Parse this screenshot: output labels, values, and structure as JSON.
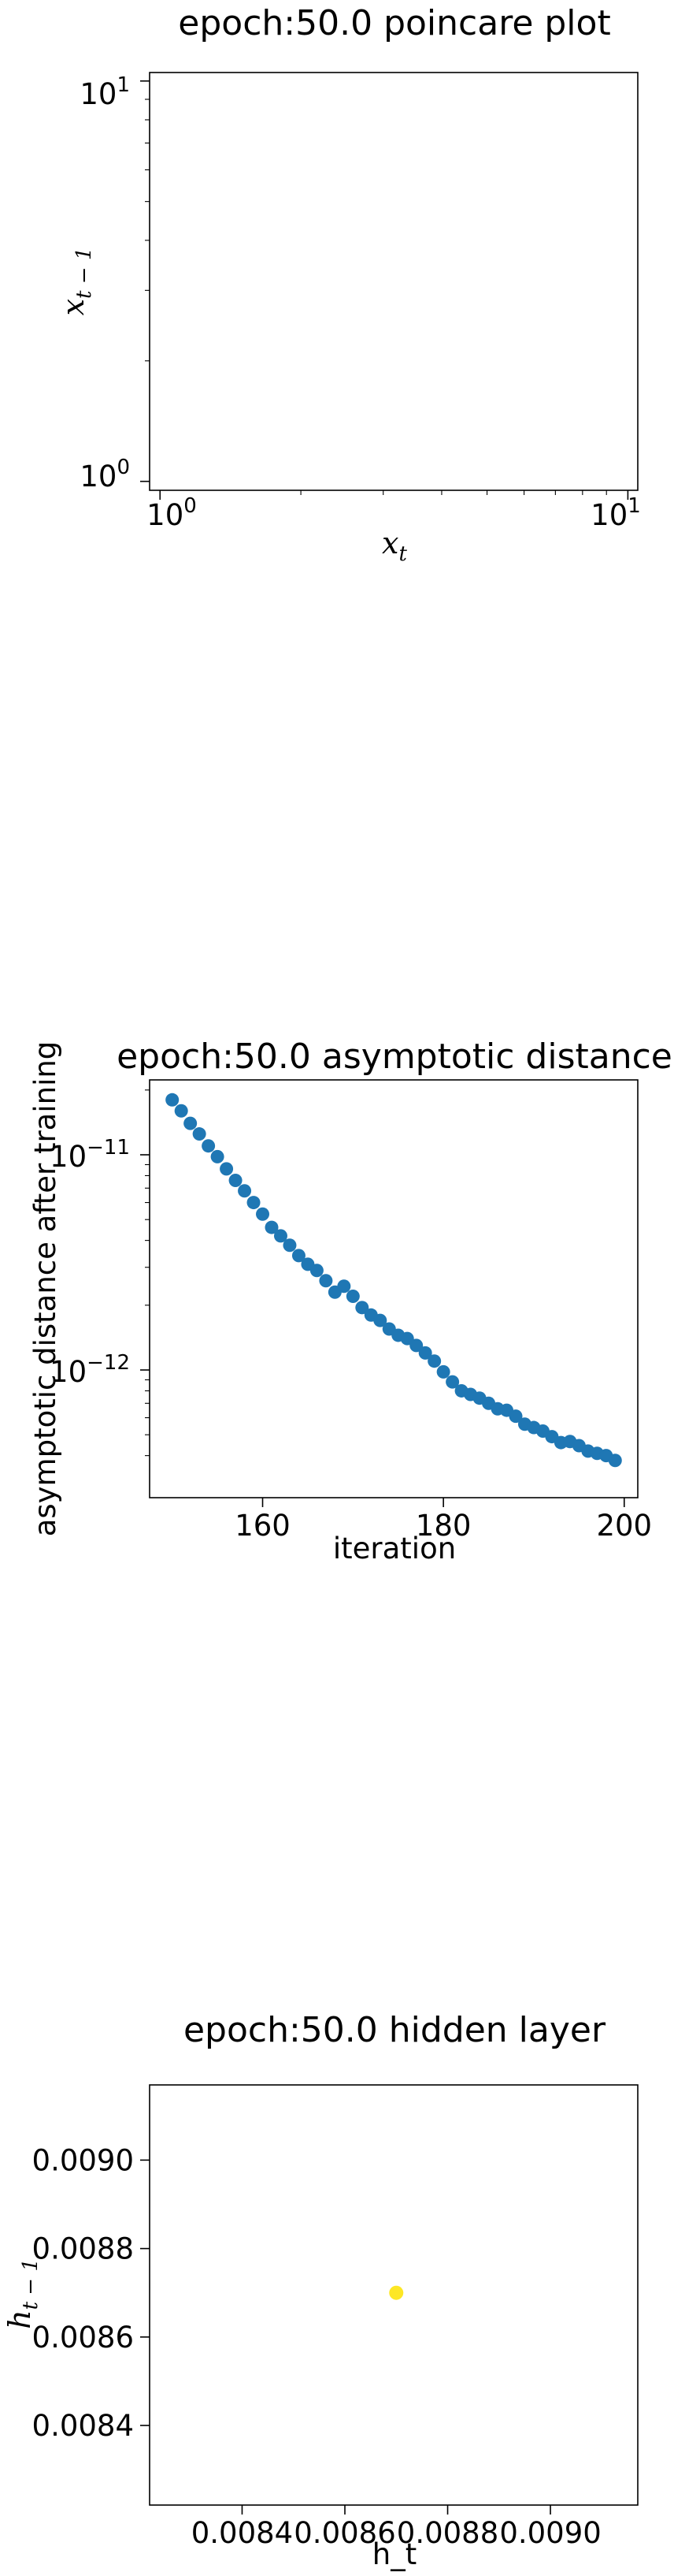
{
  "chart_data": [
    {
      "type": "scatter",
      "title": "epoch:50.0 poincare plot",
      "xlabel": "x_t",
      "ylabel": "x_{t-1}",
      "xscale": "log",
      "yscale": "log",
      "xlim": [
        0.95,
        10.5
      ],
      "ylim": [
        0.95,
        10.5
      ],
      "x_ticks": [
        {
          "base": "10",
          "exp": "0"
        },
        {
          "base": "10",
          "exp": "1"
        }
      ],
      "y_ticks": [
        {
          "base": "10",
          "exp": "0"
        },
        {
          "base": "10",
          "exp": "1"
        }
      ],
      "series": [
        {
          "x": [],
          "y": []
        }
      ]
    },
    {
      "type": "scatter",
      "title": "epoch:50.0 asymptotic distance",
      "xlabel": "iteration",
      "ylabel": "asymptotic distance after training",
      "yscale": "log",
      "xlim": [
        147.5,
        201.5
      ],
      "x_ticks": [
        "160",
        "180",
        "200"
      ],
      "y_ticks": [
        {
          "base": "10",
          "exp": "−11"
        },
        {
          "base": "10",
          "exp": "−12"
        }
      ],
      "color": "#1f77b4",
      "series": [
        {
          "x": [
            150,
            151,
            152,
            153,
            154,
            155,
            156,
            157,
            158,
            159,
            160,
            161,
            162,
            163,
            164,
            165,
            166,
            167,
            168,
            169,
            170,
            171,
            172,
            173,
            174,
            175,
            176,
            177,
            178,
            179,
            180,
            181,
            182,
            183,
            184,
            185,
            186,
            187,
            188,
            189,
            190,
            191,
            192,
            193,
            194,
            195,
            196,
            197,
            198,
            199
          ],
          "y": [
            1.8e-11,
            1.6e-11,
            1.4e-11,
            1.25e-11,
            1.1e-11,
            9.8e-12,
            8.6e-12,
            7.6e-12,
            6.8e-12,
            6e-12,
            5.3e-12,
            4.6e-12,
            4.2e-12,
            3.8e-12,
            3.4e-12,
            3.1e-12,
            2.9e-12,
            2.6e-12,
            2.3e-12,
            2.45e-12,
            2.2e-12,
            1.95e-12,
            1.8e-12,
            1.7e-12,
            1.55e-12,
            1.45e-12,
            1.4e-12,
            1.3e-12,
            1.2e-12,
            1.1e-12,
            9.8e-13,
            8.8e-13,
            8e-13,
            7.7e-13,
            7.4e-13,
            7e-13,
            6.6e-13,
            6.5e-13,
            6.1e-13,
            5.6e-13,
            5.4e-13,
            5.2e-13,
            4.9e-13,
            4.6e-13,
            4.65e-13,
            4.45e-13,
            4.2e-13,
            4.1e-13,
            4e-13,
            3.8e-13
          ]
        }
      ]
    },
    {
      "type": "scatter",
      "title": "epoch:50.0 hidden layer",
      "xlabel": "h_t",
      "ylabel": "h_{t-1}",
      "xlim": [
        0.00822,
        0.00917
      ],
      "ylim": [
        0.00822,
        0.00917
      ],
      "x_ticks": [
        "0.0084",
        "0.0086",
        "0.0088",
        "0.0090"
      ],
      "y_ticks": [
        "0.0084",
        "0.0086",
        "0.0088",
        "0.0090"
      ],
      "color": "#fde725",
      "series": [
        {
          "x": [
            0.0087
          ],
          "y": [
            0.0087
          ]
        }
      ]
    }
  ]
}
